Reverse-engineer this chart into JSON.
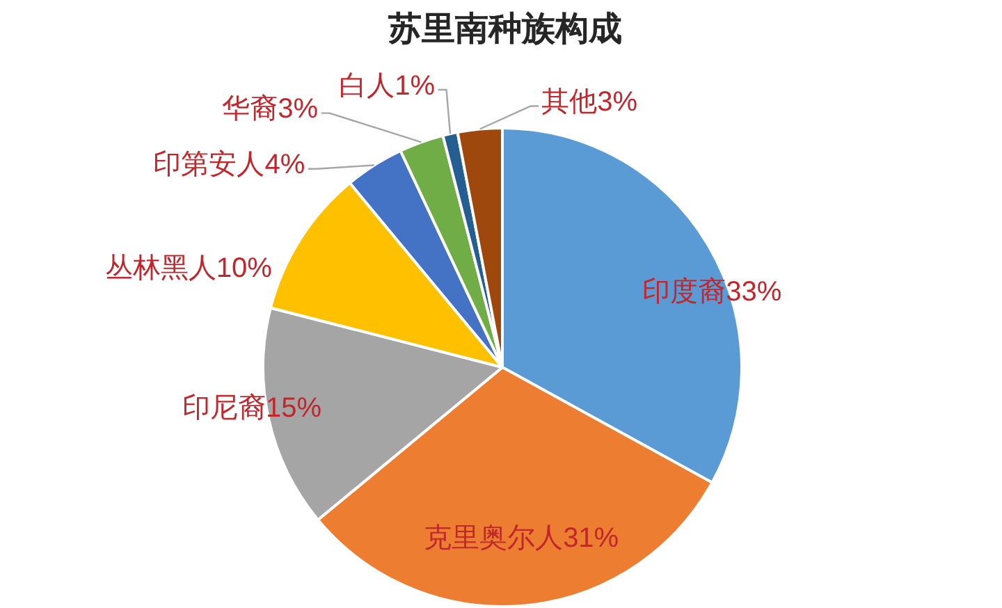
{
  "chart_data": {
    "type": "pie",
    "title": "苏里南种族构成",
    "categories": [
      "印度裔",
      "克里奥尔人",
      "印尼裔",
      "丛林黑人",
      "印第安人",
      "华裔",
      "白人",
      "其他"
    ],
    "values": [
      33,
      31,
      15,
      10,
      4,
      3,
      1,
      3
    ],
    "value_labels": [
      "33%",
      "31%",
      "15%",
      "10%",
      "4%",
      "3%",
      "1%",
      "3%"
    ],
    "colors": [
      "#5b9bd5",
      "#ed7d31",
      "#a5a5a5",
      "#ffc000",
      "#4472c4",
      "#70ad47",
      "#255e91",
      "#9e480e"
    ]
  }
}
